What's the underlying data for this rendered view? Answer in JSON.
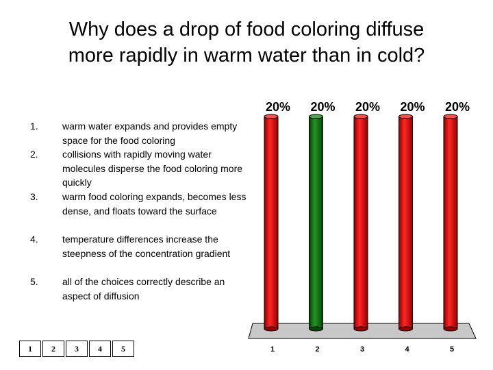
{
  "title": {
    "line1": "Why does a drop of food coloring diffuse",
    "line2": "more rapidly in warm water than in cold?"
  },
  "choices": [
    {
      "num": "1.",
      "text": "warm water expands and provides empty space for the food coloring"
    },
    {
      "num": "2.",
      "text": "collisions with rapidly moving water molecules disperse the food coloring more quickly"
    },
    {
      "num": "3.",
      "text": "warm food coloring expands, becomes less dense, and floats toward the surface"
    },
    {
      "num": "4.",
      "text": "temperature differences increase the steepness of the concentration gradient"
    },
    {
      "num": "5.",
      "text": "all of the choices correctly describe an aspect of diffusion"
    }
  ],
  "response_boxes": [
    "1",
    "2",
    "3",
    "4",
    "5"
  ],
  "chart_data": {
    "type": "bar",
    "categories": [
      "1",
      "2",
      "3",
      "4",
      "5"
    ],
    "values": [
      20,
      20,
      20,
      20,
      20
    ],
    "value_labels": [
      "20%",
      "20%",
      "20%",
      "20%",
      "20%"
    ],
    "ylim": [
      0,
      20
    ],
    "colors": [
      "#ff0000",
      "#007f00",
      "#ff0000",
      "#ff0000",
      "#ff0000"
    ],
    "highlight_index": 1,
    "title": "",
    "xlabel": "",
    "ylabel": ""
  }
}
